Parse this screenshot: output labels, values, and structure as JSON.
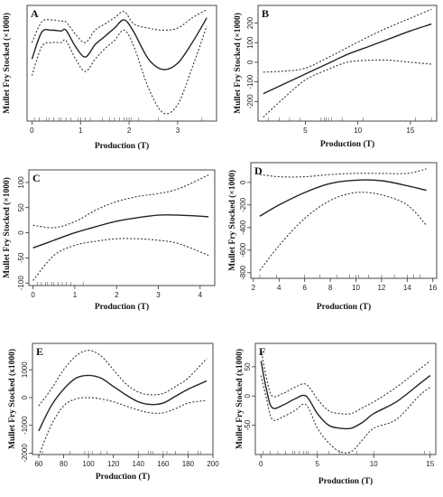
{
  "chart_data": [
    {
      "type": "line",
      "panel": "A",
      "xlabel": "Production (T)",
      "ylabel": "Mullet Fry Stocked (×1000)",
      "xlim": [
        -0.1,
        3.8
      ],
      "ylim": [
        -210,
        70
      ],
      "xticks": [
        0,
        1,
        2,
        3
      ],
      "yticks": [],
      "series": [
        {
          "role": "fit",
          "x": [
            0,
            0.2,
            0.4,
            0.6,
            0.7,
            0.9,
            1.1,
            1.3,
            1.5,
            1.7,
            1.9,
            2.1,
            2.4,
            2.7,
            3.0,
            3.3,
            3.6
          ],
          "y": [
            -60,
            5,
            10,
            8,
            10,
            -30,
            -55,
            -25,
            -5,
            15,
            35,
            5,
            -60,
            -85,
            -70,
            -20,
            40
          ]
        },
        {
          "role": "upper",
          "x": [
            0,
            0.2,
            0.4,
            0.6,
            0.7,
            0.9,
            1.1,
            1.3,
            1.5,
            1.7,
            1.9,
            2.1,
            2.4,
            2.7,
            3.0,
            3.3,
            3.6
          ],
          "y": [
            -20,
            30,
            35,
            32,
            30,
            0,
            -20,
            10,
            25,
            40,
            55,
            25,
            15,
            10,
            15,
            40,
            60
          ]
        },
        {
          "role": "lower",
          "x": [
            0,
            0.2,
            0.4,
            0.6,
            0.7,
            0.9,
            1.1,
            1.3,
            1.5,
            1.7,
            1.9,
            2.1,
            2.4,
            2.7,
            3.0,
            3.3,
            3.6
          ],
          "y": [
            -100,
            -30,
            -20,
            -20,
            -15,
            -60,
            -90,
            -60,
            -35,
            -15,
            10,
            -30,
            -130,
            -190,
            -170,
            -80,
            20
          ]
        }
      ],
      "rug": [
        0.05,
        0.15,
        0.3,
        0.35,
        0.45,
        0.55,
        0.6,
        0.7,
        0.8,
        0.95,
        1.0,
        1.1,
        1.2,
        1.45,
        1.6,
        1.7,
        1.8,
        1.9,
        1.95,
        2.0,
        2.05,
        2.2,
        2.6,
        3.5
      ]
    },
    {
      "type": "line",
      "panel": "B",
      "xlabel": "Production (T)",
      "ylabel": "Mullet Fry Stocked (×1000)",
      "xlim": [
        0.5,
        17.5
      ],
      "ylim": [
        -300,
        290
      ],
      "xticks": [
        5,
        10,
        15
      ],
      "yticks": [
        -200,
        -100,
        0,
        100,
        200
      ],
      "series": [
        {
          "role": "fit",
          "x": [
            1,
            3,
            5,
            7,
            9,
            11,
            13,
            15,
            17
          ],
          "y": [
            -160,
            -110,
            -60,
            -10,
            40,
            80,
            120,
            160,
            195
          ]
        },
        {
          "role": "upper",
          "x": [
            1,
            3,
            5,
            7,
            9,
            11,
            13,
            15,
            17
          ],
          "y": [
            -50,
            -45,
            -30,
            20,
            75,
            130,
            180,
            225,
            270
          ]
        },
        {
          "role": "lower",
          "x": [
            1,
            3,
            5,
            7,
            9,
            11,
            13,
            15,
            17
          ],
          "y": [
            -280,
            -180,
            -90,
            -40,
            0,
            10,
            10,
            0,
            -10
          ]
        }
      ],
      "rug": [
        1.5,
        2.5,
        3.5,
        4.5,
        6.5,
        6.8,
        7.0,
        7.2,
        7.5,
        8.5,
        10.5,
        15.5,
        17
      ]
    },
    {
      "type": "line",
      "panel": "C",
      "xlabel": "Production (T)",
      "ylabel": "Mullet Fry Stocked (×1000)",
      "xlim": [
        -0.1,
        4.35
      ],
      "ylim": [
        -105,
        125
      ],
      "xticks": [
        0,
        1,
        2,
        3,
        4
      ],
      "yticks": [
        -100,
        -50,
        0,
        50,
        100
      ],
      "series": [
        {
          "role": "fit",
          "x": [
            0,
            0.5,
            1,
            1.5,
            2,
            2.5,
            3,
            3.5,
            4.2
          ],
          "y": [
            -30,
            -15,
            0,
            12,
            23,
            30,
            35,
            35,
            32
          ]
        },
        {
          "role": "upper",
          "x": [
            0,
            0.5,
            1,
            1.5,
            2,
            2.5,
            3,
            3.5,
            4.2
          ],
          "y": [
            15,
            10,
            22,
            45,
            62,
            72,
            78,
            88,
            115
          ]
        },
        {
          "role": "lower",
          "x": [
            0,
            0.5,
            1,
            1.5,
            2,
            2.5,
            3,
            3.5,
            4.2
          ],
          "y": [
            -95,
            -45,
            -25,
            -17,
            -12,
            -12,
            -15,
            -22,
            -45
          ]
        }
      ],
      "rug": [
        0.1,
        0.2,
        0.3,
        0.35,
        0.45,
        0.5,
        0.6,
        0.7,
        0.8,
        0.9,
        1.2
      ]
    },
    {
      "type": "line",
      "panel": "D",
      "xlabel": "Production (T)",
      "ylabel": "Mullet Fry Stocked (×1000)",
      "xlim": [
        1.8,
        16.3
      ],
      "ylim": [
        -850,
        175
      ],
      "xticks": [
        2,
        4,
        6,
        8,
        10,
        12,
        14,
        16
      ],
      "yticks": [
        -800,
        -600,
        -400,
        -200,
        0
      ],
      "series": [
        {
          "role": "fit",
          "x": [
            2.5,
            4,
            6,
            8,
            10,
            12,
            14,
            15.5
          ],
          "y": [
            -300,
            -200,
            -90,
            -10,
            20,
            15,
            -30,
            -70
          ]
        },
        {
          "role": "upper",
          "x": [
            2.5,
            4,
            6,
            8,
            10,
            12,
            14,
            15.5
          ],
          "y": [
            70,
            50,
            50,
            70,
            80,
            80,
            80,
            120
          ]
        },
        {
          "role": "lower",
          "x": [
            2.5,
            4,
            6,
            8,
            10,
            12,
            14,
            15.5
          ],
          "y": [
            -780,
            -560,
            -320,
            -160,
            -90,
            -110,
            -200,
            -380
          ]
        }
      ],
      "rug": [
        2.5,
        3.8,
        6.0,
        7.2,
        8.5,
        9.5,
        10.0,
        10.2,
        11.0,
        12.0,
        13.0,
        14.0,
        14.5,
        15.0
      ]
    },
    {
      "type": "line",
      "panel": "E",
      "xlabel": "Production (T)",
      "ylabel": "Mullet Fry Stocked (x1000)",
      "xlim": [
        55,
        200
      ],
      "ylim": [
        -2050,
        1950
      ],
      "xticks": [
        60,
        80,
        100,
        120,
        140,
        160,
        180,
        200
      ],
      "yticks": [
        -2000,
        -1000,
        0,
        1000
      ],
      "series": [
        {
          "role": "fit",
          "x": [
            60,
            70,
            80,
            90,
            100,
            110,
            120,
            130,
            140,
            150,
            160,
            170,
            180,
            195
          ],
          "y": [
            -1200,
            -300,
            300,
            700,
            800,
            700,
            400,
            100,
            -150,
            -250,
            -200,
            50,
            300,
            600
          ]
        },
        {
          "role": "upper",
          "x": [
            60,
            70,
            80,
            90,
            100,
            110,
            120,
            130,
            140,
            150,
            160,
            170,
            180,
            195
          ],
          "y": [
            -300,
            300,
            1000,
            1500,
            1700,
            1500,
            1000,
            500,
            200,
            100,
            150,
            400,
            700,
            1400
          ]
        },
        {
          "role": "lower",
          "x": [
            60,
            70,
            80,
            90,
            100,
            110,
            120,
            130,
            140,
            150,
            160,
            170,
            180,
            195
          ],
          "y": [
            -2100,
            -1000,
            -300,
            -50,
            0,
            -50,
            -150,
            -300,
            -450,
            -550,
            -550,
            -400,
            -200,
            -100
          ]
        }
      ],
      "rug": [
        63,
        85,
        97,
        100,
        103,
        110,
        115,
        140,
        148,
        150,
        152,
        160,
        163,
        170,
        180,
        188,
        190
      ]
    },
    {
      "type": "line",
      "panel": "F",
      "xlabel": "Production (T)",
      "ylabel": "Mullet Fry Stocked (x1000)",
      "xlim": [
        -0.5,
        15.5
      ],
      "ylim": [
        -100,
        90
      ],
      "xticks": [
        0,
        5,
        10,
        15
      ],
      "yticks": [
        -50,
        0,
        50
      ],
      "series": [
        {
          "role": "fit",
          "x": [
            0,
            0.5,
            1,
            2,
            3,
            4,
            5,
            6,
            7,
            8,
            9,
            10,
            12,
            14,
            15
          ],
          "y": [
            60,
            10,
            -20,
            -15,
            -5,
            0,
            -30,
            -50,
            -55,
            -55,
            -45,
            -30,
            -10,
            20,
            35
          ]
        },
        {
          "role": "upper",
          "x": [
            0,
            0.5,
            1,
            2,
            3,
            4,
            5,
            6,
            7,
            8,
            9,
            10,
            12,
            14,
            15
          ],
          "y": [
            80,
            30,
            0,
            5,
            15,
            20,
            -5,
            -25,
            -30,
            -30,
            -20,
            -10,
            15,
            45,
            60
          ]
        },
        {
          "role": "lower",
          "x": [
            0,
            0.5,
            1,
            2,
            3,
            4,
            5,
            6,
            7,
            8,
            9,
            10,
            12,
            14,
            15
          ],
          "y": [
            35,
            -5,
            -40,
            -35,
            -25,
            -15,
            -55,
            -80,
            -95,
            -95,
            -75,
            -55,
            -40,
            0,
            15
          ]
        }
      ],
      "rug": [
        0.2,
        0.8,
        1.5,
        2.2,
        2.8,
        3.0,
        3.4,
        3.8,
        4.0,
        4.2,
        5.0,
        6.0,
        7.0,
        8.5,
        10.0,
        14.5,
        15.0
      ]
    }
  ]
}
